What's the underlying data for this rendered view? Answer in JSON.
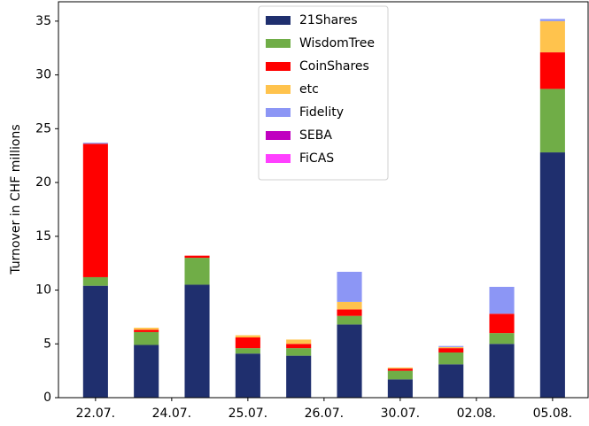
{
  "chart_data": {
    "type": "bar",
    "stacked": true,
    "ylabel": "Turnover in CHF millions",
    "x": [
      0,
      1,
      2,
      3,
      4,
      5,
      6,
      7,
      8,
      9
    ],
    "xlim": [
      -0.73,
      9.7
    ],
    "xticks": [
      {
        "value": 0,
        "label": "22.07."
      },
      {
        "value": 1.5,
        "label": "24.07."
      },
      {
        "value": 3,
        "label": "25.07."
      },
      {
        "value": 4.5,
        "label": "26.07."
      },
      {
        "value": 6,
        "label": "30.07."
      },
      {
        "value": 7.5,
        "label": "02.08."
      },
      {
        "value": 9,
        "label": "05.08."
      }
    ],
    "ylim": [
      0,
      36.8
    ],
    "yticks": [
      0,
      5,
      10,
      15,
      20,
      25,
      30,
      35
    ],
    "legend": "upper center",
    "series": [
      {
        "name": "21Shares",
        "color": "#1f2f6e",
        "values": [
          10.4,
          4.9,
          10.5,
          4.1,
          3.9,
          6.8,
          1.7,
          3.1,
          5.0,
          22.8
        ]
      },
      {
        "name": "WisdomTree",
        "color": "#70ad47",
        "values": [
          0.8,
          1.2,
          2.5,
          0.5,
          0.7,
          0.8,
          0.8,
          1.1,
          1.0,
          5.9
        ]
      },
      {
        "name": "CoinShares",
        "color": "#ff0000",
        "values": [
          12.4,
          0.2,
          0.2,
          1.0,
          0.4,
          0.6,
          0.2,
          0.4,
          1.8,
          3.4
        ]
      },
      {
        "name": "etc",
        "color": "#ffc34d",
        "values": [
          0,
          0.2,
          0,
          0.2,
          0.4,
          0.7,
          0.1,
          0.1,
          0,
          2.9
        ]
      },
      {
        "name": "Fidelity",
        "color": "#8c96f5",
        "values": [
          0.1,
          0,
          0,
          0,
          0,
          2.8,
          0,
          0.1,
          2.5,
          0.2
        ]
      },
      {
        "name": "SEBA",
        "color": "#c000c0",
        "values": [
          0,
          0,
          0,
          0,
          0,
          0,
          0,
          0,
          0,
          0
        ]
      },
      {
        "name": "FiCAS",
        "color": "#ff40ff",
        "values": [
          0,
          0,
          0,
          0,
          0,
          0,
          0,
          0,
          0,
          0
        ]
      }
    ]
  }
}
